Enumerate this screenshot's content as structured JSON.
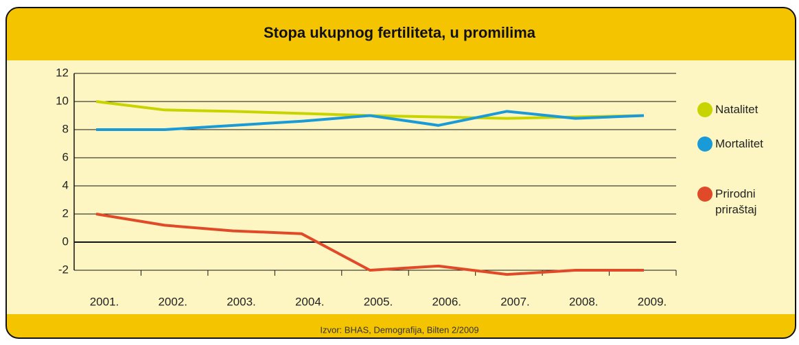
{
  "chart_data": {
    "type": "line",
    "title": "Stopa ukupnog fertiliteta, u promilima",
    "source": "Izvor:  BHAS, Demografija, Bilten 2/2009",
    "categories": [
      "2001.",
      "2002.",
      "2003.",
      "2004.",
      "2005.",
      "2006.",
      "2007.",
      "2008.",
      "2009."
    ],
    "series": [
      {
        "name": "Natalitet",
        "color": "#c8d400",
        "values": [
          10,
          9.4,
          9.3,
          9.15,
          9.0,
          8.9,
          8.8,
          8.9,
          9.0
        ]
      },
      {
        "name": "Mortalitet",
        "color": "#1a9ad6",
        "values": [
          8,
          8,
          8.3,
          8.6,
          9.0,
          8.3,
          9.3,
          8.8,
          9.0
        ]
      },
      {
        "name": "Prirodni priraštaj",
        "color": "#e04a28",
        "values": [
          2.0,
          1.2,
          0.8,
          0.6,
          -2.0,
          -1.7,
          -2.3,
          -2.0,
          -2.0
        ]
      }
    ],
    "ylim": [
      -2,
      12
    ],
    "yticks": [
      -2,
      0,
      2,
      4,
      6,
      8,
      10,
      12
    ],
    "grid": true,
    "legend": "right"
  }
}
